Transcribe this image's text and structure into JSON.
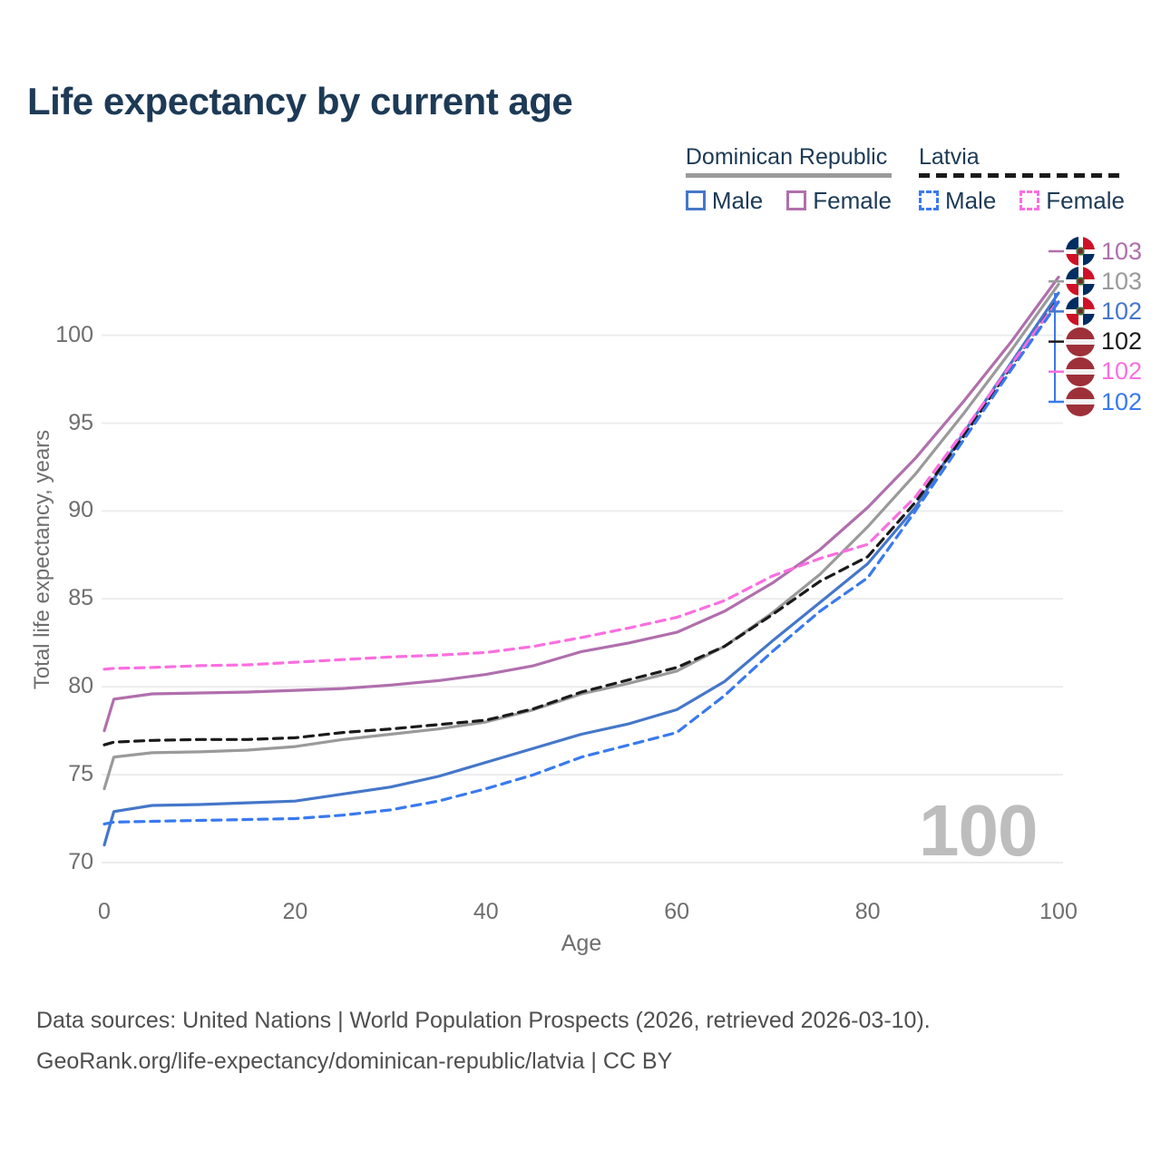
{
  "title": "Life expectancy by current age",
  "legend": {
    "groups": [
      {
        "country": "Dominican Republic",
        "line_style": "solid",
        "line_color": "#9a9a9a",
        "items": [
          {
            "label": "Male",
            "color": "#4577c9",
            "style": "solid"
          },
          {
            "label": "Female",
            "color": "#b06fad",
            "style": "solid"
          }
        ]
      },
      {
        "country": "Latvia",
        "line_style": "dashed",
        "line_color": "#1a1a1a",
        "items": [
          {
            "label": "Male",
            "color": "#3979ef",
            "style": "dashed"
          },
          {
            "label": "Female",
            "color": "#fb6ee0",
            "style": "dashed"
          }
        ]
      }
    ]
  },
  "chart_data": {
    "type": "line",
    "title": "Life expectancy by current age",
    "xlabel": "Age",
    "ylabel": "Total life expectancy, years",
    "xticks": [
      0,
      20,
      40,
      60,
      80,
      100
    ],
    "yticks": [
      70,
      75,
      80,
      85,
      90,
      95,
      100
    ],
    "xlim": [
      0,
      100
    ],
    "ylim": [
      69.5,
      104
    ],
    "grid": "horizontal-only",
    "legend_position": "top-right",
    "ages": [
      0,
      1,
      5,
      10,
      15,
      20,
      25,
      30,
      35,
      40,
      45,
      50,
      55,
      60,
      65,
      70,
      75,
      80,
      85,
      90,
      95,
      100
    ],
    "series": [
      {
        "key": "dr-female",
        "name": "Dominican Republic Female",
        "color": "#b06fad",
        "dash": false,
        "end_value": 103,
        "values": [
          77.5,
          79.3,
          79.6,
          79.65,
          79.7,
          79.8,
          79.9,
          80.1,
          80.35,
          80.7,
          81.2,
          82.0,
          82.5,
          83.1,
          84.3,
          85.9,
          87.8,
          90.2,
          93.0,
          96.2,
          99.6,
          103.3
        ]
      },
      {
        "key": "dr-both",
        "name": "Dominican Republic Both sexes",
        "color": "#9a9a9a",
        "dash": false,
        "end_value": 103,
        "values": [
          74.2,
          76.0,
          76.25,
          76.3,
          76.4,
          76.6,
          77.0,
          77.3,
          77.6,
          78.0,
          78.7,
          79.6,
          80.2,
          80.9,
          82.3,
          84.2,
          86.4,
          89.1,
          92.1,
          95.5,
          99.1,
          102.9
        ]
      },
      {
        "key": "dr-male",
        "name": "Dominican Republic Male",
        "color": "#4577c9",
        "dash": false,
        "end_value": 102,
        "values": [
          71.0,
          72.9,
          73.25,
          73.3,
          73.4,
          73.5,
          73.9,
          74.3,
          74.9,
          75.7,
          76.5,
          77.3,
          77.9,
          78.7,
          80.3,
          82.6,
          84.8,
          87.0,
          90.2,
          94.4,
          98.4,
          102.4
        ]
      },
      {
        "key": "lv-both",
        "name": "Latvia Both sexes",
        "color": "#1a1a1a",
        "dash": true,
        "end_value": 102,
        "values": [
          76.7,
          76.85,
          76.95,
          77.0,
          77.0,
          77.1,
          77.4,
          77.6,
          77.85,
          78.1,
          78.75,
          79.7,
          80.4,
          81.1,
          82.3,
          84.1,
          86.0,
          87.4,
          90.5,
          94.2,
          98.2,
          102.1
        ]
      },
      {
        "key": "lv-female",
        "name": "Latvia Female",
        "color": "#fb6ee0",
        "dash": true,
        "end_value": 102,
        "values": [
          81.0,
          81.05,
          81.1,
          81.2,
          81.25,
          81.4,
          81.55,
          81.7,
          81.8,
          81.95,
          82.3,
          82.8,
          83.35,
          83.95,
          84.9,
          86.3,
          87.3,
          88.1,
          90.8,
          94.5,
          98.3,
          102.0
        ]
      },
      {
        "key": "lv-male",
        "name": "Latvia Male",
        "color": "#3979ef",
        "dash": true,
        "end_value": 102,
        "values": [
          72.2,
          72.3,
          72.35,
          72.4,
          72.45,
          72.5,
          72.7,
          73.0,
          73.5,
          74.2,
          75.0,
          76.0,
          76.7,
          77.4,
          79.5,
          82.0,
          84.3,
          86.2,
          90.0,
          94.0,
          98.0,
          101.9
        ]
      }
    ]
  },
  "annotations": {
    "items": [
      {
        "flag": "dominican-republic",
        "value": "103",
        "color": "#b06fad"
      },
      {
        "flag": "dominican-republic",
        "value": "103",
        "color": "#9a9a9a"
      },
      {
        "flag": "dominican-republic",
        "value": "102",
        "color": "#4577c9"
      },
      {
        "flag": "latvia",
        "value": "102",
        "color": "#1a1a1a"
      },
      {
        "flag": "latvia",
        "value": "102",
        "color": "#fb6ee0"
      },
      {
        "flag": "latvia",
        "value": "102",
        "color": "#3979ef"
      }
    ]
  },
  "watermark": "100",
  "footer": {
    "line1": "Data sources: United Nations | World Population Prospects (2026, retrieved 2026-03-10).",
    "line2": "GeoRank.org/life-expectancy/dominican-republic/latvia | CC BY"
  },
  "colors": {
    "title": "#1d3a56",
    "axis_text": "#6e6e6e",
    "gridline": "#ececec",
    "watermark": "#bdbdbd",
    "footer_text": "#4f4f4f"
  }
}
